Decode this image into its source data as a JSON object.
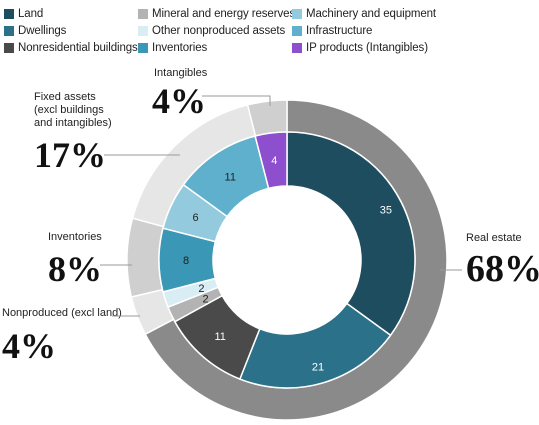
{
  "legend": [
    {
      "name": "Land",
      "color": "#1e4d5f"
    },
    {
      "name": "Dwellings",
      "color": "#2a7189"
    },
    {
      "name": "Nonresidential buildings",
      "color": "#4a4a4a"
    },
    {
      "name": "Mineral and energy reserves",
      "color": "#b3b3b3"
    },
    {
      "name": "Other nonproduced assets",
      "color": "#d9edf5"
    },
    {
      "name": "Inventories",
      "color": "#3a97b5"
    },
    {
      "name": "Machinery and equipment",
      "color": "#93cadd"
    },
    {
      "name": "Infrastructure",
      "color": "#5fb0cc"
    },
    {
      "name": "IP products (Intangibles)",
      "color": "#8e4fcf"
    }
  ],
  "chart_data": {
    "type": "pie",
    "subtype": "nested-donut",
    "inner_ring": [
      {
        "name": "Land",
        "value": 35,
        "label": "35",
        "color": "#1e4d5f",
        "label_color": "#ffffff"
      },
      {
        "name": "Dwellings",
        "value": 21,
        "label": "21",
        "color": "#2a7189",
        "label_color": "#ffffff"
      },
      {
        "name": "Nonresidential buildings",
        "value": 11,
        "label": "11",
        "color": "#4a4a4a",
        "label_color": "#ffffff"
      },
      {
        "name": "Mineral and energy reserves",
        "value": 2,
        "label": "2",
        "color": "#b3b3b3",
        "label_color": "#222222"
      },
      {
        "name": "Other nonproduced assets",
        "value": 2,
        "label": "2",
        "color": "#d9edf5",
        "label_color": "#222222"
      },
      {
        "name": "Inventories",
        "value": 8,
        "label": "8",
        "color": "#3a97b5",
        "label_color": "#222222"
      },
      {
        "name": "Machinery and equipment",
        "value": 6,
        "label": "6",
        "color": "#93cadd",
        "label_color": "#222222"
      },
      {
        "name": "Infrastructure",
        "value": 11,
        "label": "11",
        "color": "#5fb0cc",
        "label_color": "#222222"
      },
      {
        "name": "IP products (Intangibles)",
        "value": 4,
        "label": "4",
        "color": "#8e4fcf",
        "label_color": "#ffffff"
      }
    ],
    "outer_ring": [
      {
        "name": "Real estate",
        "value": 68,
        "percent": "68%",
        "color": "#8a8a8a"
      },
      {
        "name": "Nonproduced (excl land)",
        "value": 4,
        "percent": "4%",
        "color": "#e6e6e6"
      },
      {
        "name": "Inventories",
        "value": 8,
        "percent": "8%",
        "color": "#cfcfcf"
      },
      {
        "name": "Fixed assets (excl buildings and intangibles)",
        "lines": [
          "Fixed assets",
          "(excl buildings",
          "and intangibles)"
        ],
        "value": 17,
        "percent": "17%",
        "color": "#e6e6e6"
      },
      {
        "name": "Intangibles",
        "value": 4,
        "percent": "4%",
        "color": "#cfcfcf"
      }
    ]
  }
}
